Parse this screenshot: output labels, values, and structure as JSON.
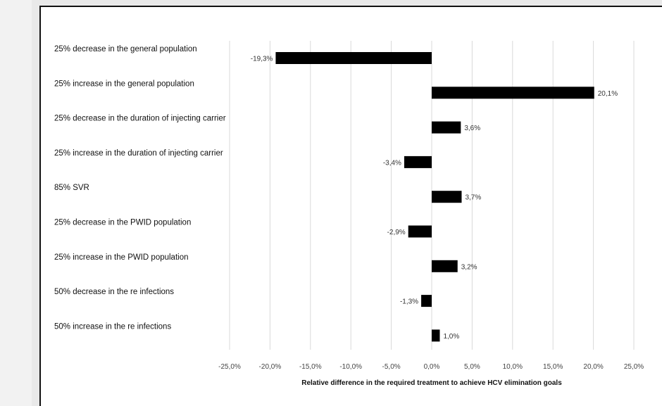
{
  "chart_data": {
    "type": "bar",
    "orientation": "horizontal",
    "categories": [
      "25% decrease in the general population",
      "25% increase in the general population",
      "25% decrease in the duration of injecting carrier",
      "25% increase in the duration of injecting carrier",
      "85% SVR",
      "25% decrease in the PWID population",
      "25% increase in the PWID population",
      "50% decrease in the re infections",
      "50% increase in the re infections"
    ],
    "values": [
      -19.3,
      20.1,
      3.6,
      -3.4,
      3.7,
      -2.9,
      3.2,
      -1.3,
      1.0
    ],
    "data_labels": [
      "-19,3%",
      "20,1%",
      "3,6%",
      "-3,4%",
      "3,7%",
      "-2,9%",
      "3,2%",
      "-1,3%",
      "1,0%"
    ],
    "xlim": [
      -25,
      25
    ],
    "xticks": [
      -25,
      -20,
      -15,
      -10,
      -5,
      0,
      5,
      10,
      15,
      20,
      25
    ],
    "xtick_labels": [
      "-25,0%",
      "-20,0%",
      "-15,0%",
      "-10,0%",
      "-5,0%",
      "0,0%",
      "5,0%",
      "10,0%",
      "15,0%",
      "20,0%",
      "25,0%"
    ],
    "xlabel": "Relative difference in the required treatment to achieve HCV elimination goals",
    "ylabel": "",
    "title": "",
    "grid": "vertical",
    "legend": "none",
    "bar_color": "#000000",
    "grid_color": "#d9d9d9"
  }
}
